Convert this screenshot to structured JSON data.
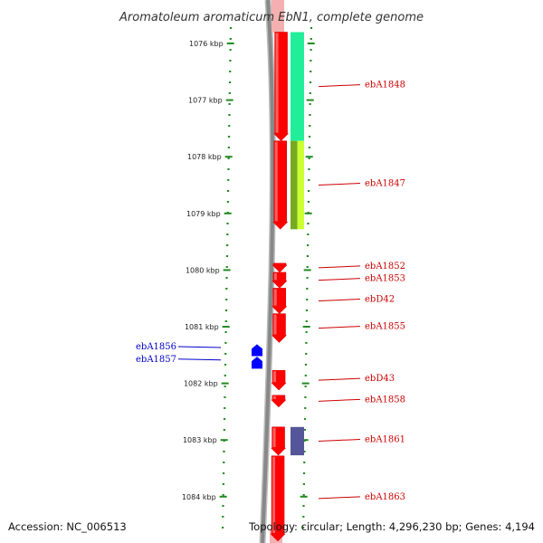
{
  "title": "Aromatoleum aromaticum EbN1, complete genome",
  "footer": {
    "accession": "Accession: NC_006513",
    "summary": "Topology: circular; Length: 4,296,230 bp; Genes: 4,194"
  },
  "colors": {
    "forward_gene": "#ff0000",
    "reverse_gene": "#0000ff",
    "ruler_dots": "#228b22",
    "backbone": "#888888",
    "label_forward": "#cc0000",
    "label_reverse": "#0000cc",
    "cog_green": "#22ee99",
    "cog_olive": "#77aa22",
    "cog_lime": "#ccff33",
    "cog_purple": "#555599"
  },
  "ruler_ticks": [
    {
      "kbp": 1076,
      "label": "1076 kbp"
    },
    {
      "kbp": 1077,
      "label": "1077 kbp"
    },
    {
      "kbp": 1078,
      "label": "1078 kbp"
    },
    {
      "kbp": 1079,
      "label": "1079 kbp"
    },
    {
      "kbp": 1080,
      "label": "1080 kbp"
    },
    {
      "kbp": 1081,
      "label": "1081 kbp"
    },
    {
      "kbp": 1082,
      "label": "1082 kbp"
    },
    {
      "kbp": 1083,
      "label": "1083 kbp"
    },
    {
      "kbp": 1084,
      "label": "1084 kbp"
    }
  ],
  "genes": [
    {
      "name": "ebA1848",
      "strand": "forward",
      "start_kbp": 1075.8,
      "end_kbp": 1077.72
    },
    {
      "name": "ebA1847",
      "strand": "forward",
      "start_kbp": 1077.72,
      "end_kbp": 1079.28
    },
    {
      "name": "ebA1852",
      "strand": "forward",
      "start_kbp": 1079.88,
      "end_kbp": 1080.04
    },
    {
      "name": "ebA1853",
      "strand": "forward",
      "start_kbp": 1080.04,
      "end_kbp": 1080.32
    },
    {
      "name": "ebD42",
      "strand": "forward",
      "start_kbp": 1080.32,
      "end_kbp": 1080.77
    },
    {
      "name": "ebA1855",
      "strand": "forward",
      "start_kbp": 1080.77,
      "end_kbp": 1081.28
    },
    {
      "name": "ebA1856",
      "strand": "reverse",
      "start_kbp": 1081.31,
      "end_kbp": 1081.52
    },
    {
      "name": "ebA1857",
      "strand": "reverse",
      "start_kbp": 1081.53,
      "end_kbp": 1081.74
    },
    {
      "name": "ebD43",
      "strand": "forward",
      "start_kbp": 1081.77,
      "end_kbp": 1082.12
    },
    {
      "name": "ebA1858",
      "strand": "forward",
      "start_kbp": 1082.21,
      "end_kbp": 1082.42
    },
    {
      "name": "ebA1861",
      "strand": "forward",
      "start_kbp": 1082.77,
      "end_kbp": 1083.27
    },
    {
      "name": "ebA1863",
      "strand": "forward",
      "start_kbp": 1083.28,
      "end_kbp": 1084.8
    }
  ],
  "cog_blocks": [
    {
      "gene": "ebA1848",
      "segments": [
        "cog_green"
      ]
    },
    {
      "gene": "ebA1847",
      "segments": [
        "cog_olive",
        "cog_lime"
      ]
    },
    {
      "gene": "ebA1861",
      "segments": [
        "cog_purple"
      ]
    }
  ]
}
